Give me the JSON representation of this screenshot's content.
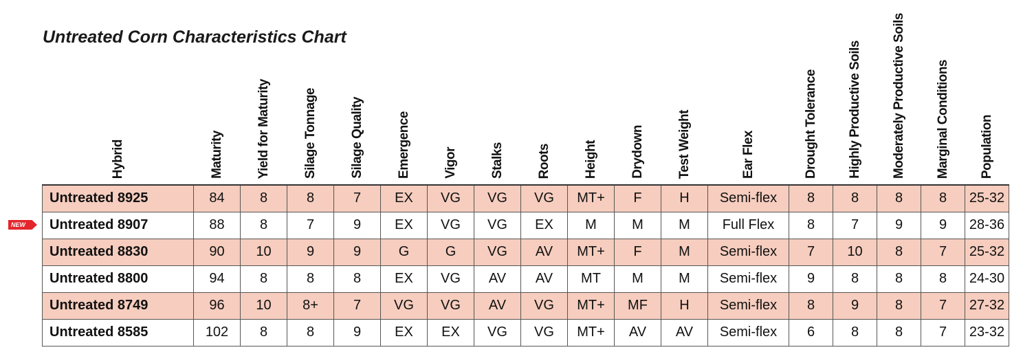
{
  "title": "Untreated Corn Characteristics Chart",
  "new_badge": "NEW",
  "columns": [
    "Hybrid",
    "Maturity",
    "Yield for Maturity",
    "Silage Tonnage",
    "Silage Quality",
    "Emergence",
    "Vigor",
    "Stalks",
    "Roots",
    "Height",
    "Drydown",
    "Test Weight",
    "Ear Flex",
    "Drought Tolerance",
    "Highly Productive Soils",
    "Moderately Productive Soils",
    "Marginal Conditions",
    "Population"
  ],
  "rows": [
    {
      "cells": [
        "Untreated 8925",
        "84",
        "8",
        "8",
        "7",
        "EX",
        "VG",
        "VG",
        "VG",
        "MT+",
        "F",
        "H",
        "Semi-flex",
        "8",
        "8",
        "8",
        "8",
        "25-32"
      ],
      "shaded": true
    },
    {
      "cells": [
        "Untreated 8907",
        "88",
        "8",
        "7",
        "9",
        "EX",
        "VG",
        "VG",
        "EX",
        "M",
        "M",
        "M",
        "Full Flex",
        "8",
        "7",
        "9",
        "9",
        "28-36"
      ],
      "shaded": false
    },
    {
      "cells": [
        "Untreated 8830",
        "90",
        "10",
        "9",
        "9",
        "G",
        "G",
        "VG",
        "AV",
        "MT+",
        "F",
        "M",
        "Semi-flex",
        "7",
        "10",
        "8",
        "7",
        "25-32"
      ],
      "shaded": true
    },
    {
      "cells": [
        "Untreated 8800",
        "94",
        "8",
        "8",
        "8",
        "EX",
        "VG",
        "AV",
        "AV",
        "MT",
        "M",
        "M",
        "Semi-flex",
        "9",
        "8",
        "8",
        "8",
        "24-30"
      ],
      "shaded": false
    },
    {
      "cells": [
        "Untreated 8749",
        "96",
        "10",
        "8+",
        "7",
        "VG",
        "VG",
        "AV",
        "VG",
        "MT+",
        "MF",
        "H",
        "Semi-flex",
        "8",
        "9",
        "8",
        "7",
        "27-32"
      ],
      "shaded": true
    },
    {
      "cells": [
        "Untreated 8585",
        "102",
        "8",
        "8",
        "9",
        "EX",
        "EX",
        "VG",
        "VG",
        "MT+",
        "AV",
        "AV",
        "Semi-flex",
        "6",
        "8",
        "8",
        "7",
        "23-32"
      ],
      "shaded": false
    }
  ]
}
